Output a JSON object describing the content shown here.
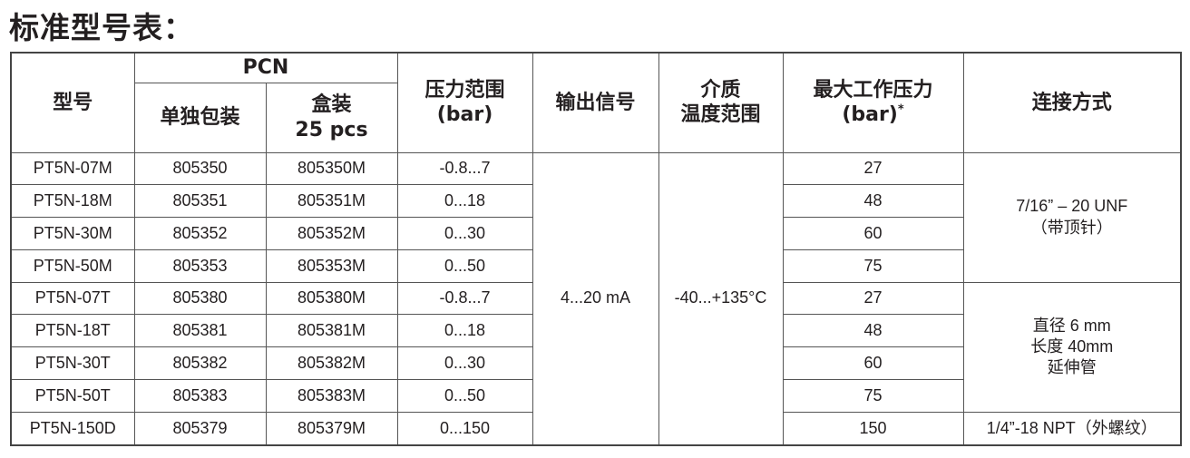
{
  "title": "标准型号表：",
  "headers": {
    "model": "型号",
    "pcn": "PCN",
    "single": "单独包装",
    "box_line1": "盒装",
    "box_line2": "25 pcs",
    "range_line1": "压力范围",
    "range_line2": "(bar)",
    "output": "输出信号",
    "medium_line1": "介质",
    "medium_line2": "温度范围",
    "maxp_line1": "最大工作压力",
    "maxp_line2": "(bar)",
    "maxp_note": "*",
    "conn": "连接方式"
  },
  "rows": [
    {
      "model": "PT5N-07M",
      "single": "805350",
      "box": "805350M",
      "range": "-0.8...7",
      "maxp": "27"
    },
    {
      "model": "PT5N-18M",
      "single": "805351",
      "box": "805351M",
      "range": "0...18",
      "maxp": "48"
    },
    {
      "model": "PT5N-30M",
      "single": "805352",
      "box": "805352M",
      "range": "0...30",
      "maxp": "60"
    },
    {
      "model": "PT5N-50M",
      "single": "805353",
      "box": "805353M",
      "range": "0...50",
      "maxp": "75"
    },
    {
      "model": "PT5N-07T",
      "single": "805380",
      "box": "805380M",
      "range": "-0.8...7",
      "maxp": "27"
    },
    {
      "model": "PT5N-18T",
      "single": "805381",
      "box": "805381M",
      "range": "0...18",
      "maxp": "48"
    },
    {
      "model": "PT5N-30T",
      "single": "805382",
      "box": "805382M",
      "range": "0...30",
      "maxp": "60"
    },
    {
      "model": "PT5N-50T",
      "single": "805383",
      "box": "805383M",
      "range": "0...50",
      "maxp": "75"
    },
    {
      "model": "PT5N-150D",
      "single": "805379",
      "box": "805379M",
      "range": "0...150",
      "maxp": "150"
    }
  ],
  "output": "4...20 mA",
  "medium": "-40...+135°C",
  "conn": {
    "a_line1": "7/16” – 20 UNF",
    "a_line2": "（带顶针）",
    "b_line1": "直径 6 mm",
    "b_line2": "长度 40mm",
    "b_line3": "延伸管",
    "c": "1/4”-18 NPT（外螺纹）"
  }
}
